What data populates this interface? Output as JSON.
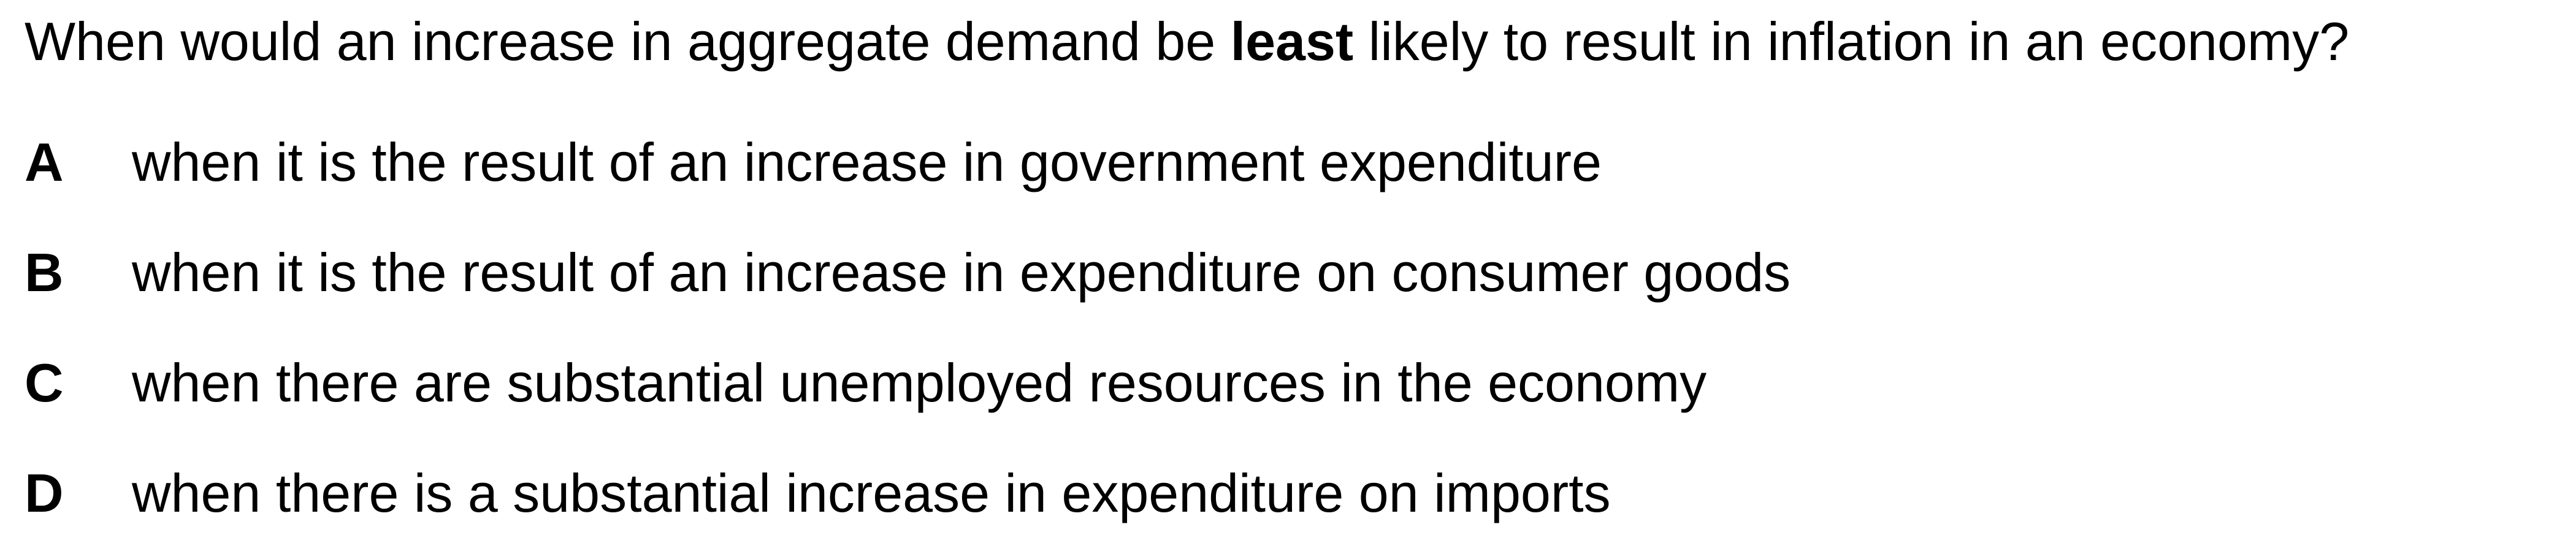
{
  "question": {
    "before": "When would an increase in aggregate demand be ",
    "emphasis": "least",
    "after": " likely to result in inflation in an economy?"
  },
  "options": [
    {
      "letter": "A",
      "text": "when it is the result of an increase in government expenditure"
    },
    {
      "letter": "B",
      "text": "when it is the result of an increase in expenditure on consumer goods"
    },
    {
      "letter": "C",
      "text": "when there are substantial unemployed resources in the economy"
    },
    {
      "letter": "D",
      "text": "when there is a substantial increase in expenditure on imports"
    }
  ]
}
